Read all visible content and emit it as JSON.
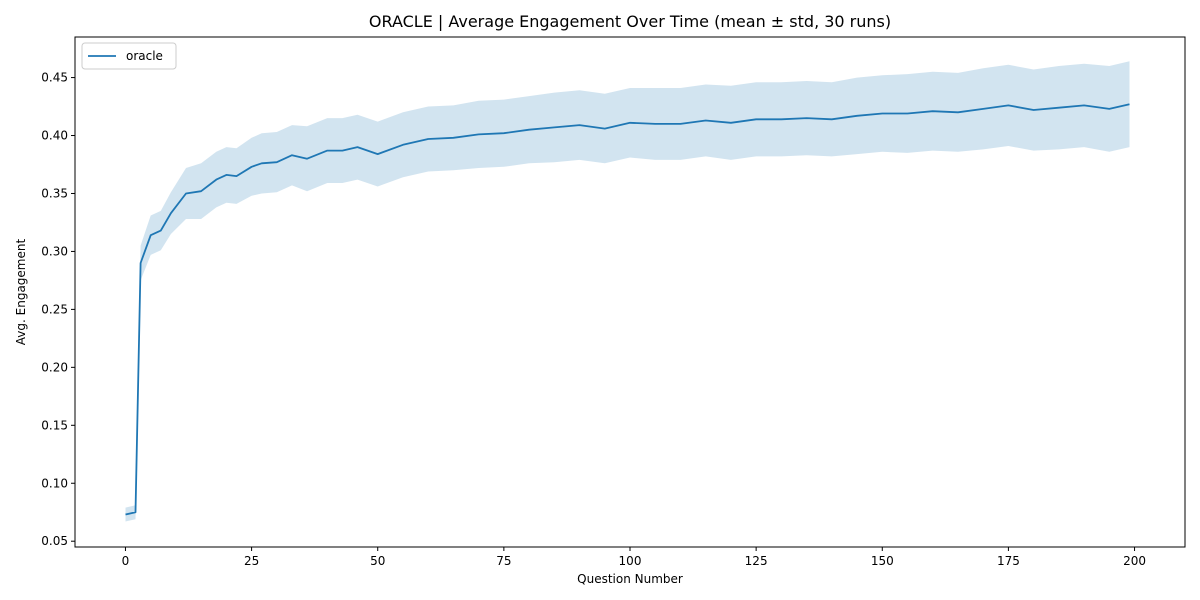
{
  "chart_data": {
    "type": "line",
    "title": "ORACLE | Average Engagement Over Time (mean ± std, 30 runs)",
    "xlabel": "Question Number",
    "ylabel": "Avg. Engagement",
    "xlim": [
      -10,
      210
    ],
    "ylim": [
      0.045,
      0.485
    ],
    "xticks": [
      0,
      25,
      50,
      75,
      100,
      125,
      150,
      175,
      200
    ],
    "yticks": [
      0.05,
      0.1,
      0.15,
      0.2,
      0.25,
      0.3,
      0.35,
      0.4,
      0.45
    ],
    "xtick_labels": [
      "0",
      "25",
      "50",
      "75",
      "100",
      "125",
      "150",
      "175",
      "200"
    ],
    "ytick_labels": [
      "0.05",
      "0.10",
      "0.15",
      "0.20",
      "0.25",
      "0.30",
      "0.35",
      "0.40",
      "0.45"
    ],
    "grid": false,
    "legend": {
      "position": "top-left",
      "entries": [
        "oracle"
      ]
    },
    "series": [
      {
        "name": "oracle",
        "color": "#1f77b4",
        "band_color": "#1f77b4",
        "band": "mean ± std",
        "x": [
          0,
          2,
          3,
          5,
          7,
          9,
          12,
          15,
          18,
          20,
          22,
          25,
          27,
          30,
          33,
          36,
          40,
          43,
          46,
          50,
          55,
          60,
          65,
          70,
          75,
          80,
          85,
          90,
          95,
          100,
          105,
          110,
          115,
          120,
          125,
          130,
          135,
          140,
          145,
          150,
          155,
          160,
          165,
          170,
          175,
          180,
          185,
          190,
          195,
          199
        ],
        "mean": [
          0.073,
          0.075,
          0.29,
          0.314,
          0.318,
          0.333,
          0.35,
          0.352,
          0.362,
          0.366,
          0.365,
          0.373,
          0.376,
          0.377,
          0.383,
          0.38,
          0.387,
          0.387,
          0.39,
          0.384,
          0.392,
          0.397,
          0.398,
          0.401,
          0.402,
          0.405,
          0.407,
          0.409,
          0.406,
          0.411,
          0.41,
          0.41,
          0.413,
          0.411,
          0.414,
          0.414,
          0.415,
          0.414,
          0.417,
          0.419,
          0.419,
          0.421,
          0.42,
          0.423,
          0.426,
          0.422,
          0.424,
          0.426,
          0.423,
          0.427
        ],
        "std": [
          0.006,
          0.006,
          0.015,
          0.017,
          0.017,
          0.018,
          0.022,
          0.024,
          0.024,
          0.024,
          0.024,
          0.025,
          0.026,
          0.026,
          0.026,
          0.028,
          0.028,
          0.028,
          0.028,
          0.028,
          0.028,
          0.028,
          0.028,
          0.029,
          0.029,
          0.029,
          0.03,
          0.03,
          0.03,
          0.03,
          0.031,
          0.031,
          0.031,
          0.032,
          0.032,
          0.032,
          0.032,
          0.032,
          0.033,
          0.033,
          0.034,
          0.034,
          0.034,
          0.035,
          0.035,
          0.035,
          0.036,
          0.036,
          0.037,
          0.037
        ]
      }
    ]
  }
}
